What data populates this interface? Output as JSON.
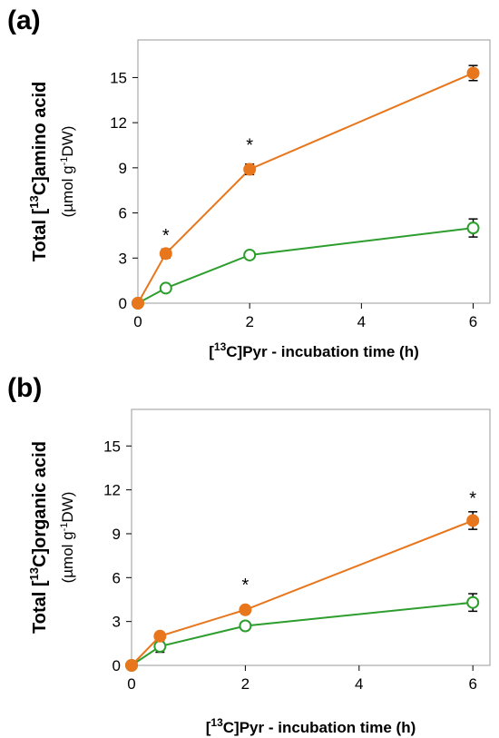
{
  "colors": {
    "treated": "#e8761c",
    "control": "#2d9e2d"
  },
  "chart_data": [
    {
      "panel": "(a)",
      "type": "line",
      "xlabel_pre": "[",
      "xlabel_sup": "13",
      "xlabel_post": "C]Pyr  - incubation time (h)",
      "ylabel_pre": "Total [",
      "ylabel_sup": "13",
      "ylabel_post": "C]amino acid",
      "ylabel_unit_pre": "(µmol g",
      "ylabel_unit_sup": "-1",
      "ylabel_unit_post": "DW)",
      "xlim": [
        0,
        6.3
      ],
      "ylim": [
        0,
        17.5
      ],
      "xticks": [
        0,
        2,
        4,
        6
      ],
      "xtick_labels": [
        "0",
        "2",
        "4",
        "6"
      ],
      "yticks": [
        0,
        3,
        6,
        9,
        12,
        15
      ],
      "ytick_labels": [
        "0",
        "3",
        "6",
        "9",
        "12",
        "15"
      ],
      "series": [
        {
          "style": "filled",
          "x": [
            0,
            0.5,
            2,
            6
          ],
          "y": [
            0,
            3.3,
            8.9,
            15.3
          ],
          "err": [
            0,
            0.3,
            0.35,
            0.5
          ]
        },
        {
          "style": "open",
          "x": [
            0,
            0.5,
            2,
            6
          ],
          "y": [
            0,
            1.0,
            3.2,
            5.0
          ],
          "err": [
            0,
            0.2,
            0.2,
            0.6
          ]
        }
      ],
      "annotations": [
        {
          "text": "*",
          "x": 0.5,
          "y": 4.6
        },
        {
          "text": "*",
          "x": 2,
          "y": 10.6
        },
        {
          "text": "*",
          "x": 6.55,
          "y": 16.3
        }
      ]
    },
    {
      "panel": "(b)",
      "type": "line",
      "xlabel_pre": "[",
      "xlabel_sup": "13",
      "xlabel_post": "C]Pyr  - incubation time (h)",
      "ylabel_pre": "Total [",
      "ylabel_sup": "13",
      "ylabel_post": "C]organic acid",
      "ylabel_unit_pre": "(µmol g",
      "ylabel_unit_sup": "-1",
      "ylabel_unit_post": "DW)",
      "xlim": [
        0,
        6.3
      ],
      "ylim": [
        0,
        17.5
      ],
      "xticks": [
        0,
        2,
        4,
        6
      ],
      "xtick_labels": [
        "0",
        "2",
        "4",
        "6"
      ],
      "yticks": [
        0,
        3,
        6,
        9,
        12,
        15
      ],
      "ytick_labels": [
        "0",
        "3",
        "6",
        "9",
        "12",
        "15"
      ],
      "series": [
        {
          "style": "filled",
          "x": [
            0,
            0.5,
            2,
            6
          ],
          "y": [
            0,
            2.0,
            3.8,
            9.9
          ],
          "err": [
            0,
            0.2,
            0.2,
            0.6
          ]
        },
        {
          "style": "open",
          "x": [
            0,
            0.5,
            2,
            6
          ],
          "y": [
            0,
            1.3,
            2.7,
            4.3
          ],
          "err": [
            0,
            0.4,
            0.2,
            0.6
          ]
        }
      ],
      "annotations": [
        {
          "text": "*",
          "x": 2,
          "y": 5.6
        },
        {
          "text": "*",
          "x": 6,
          "y": 11.5
        }
      ]
    }
  ]
}
